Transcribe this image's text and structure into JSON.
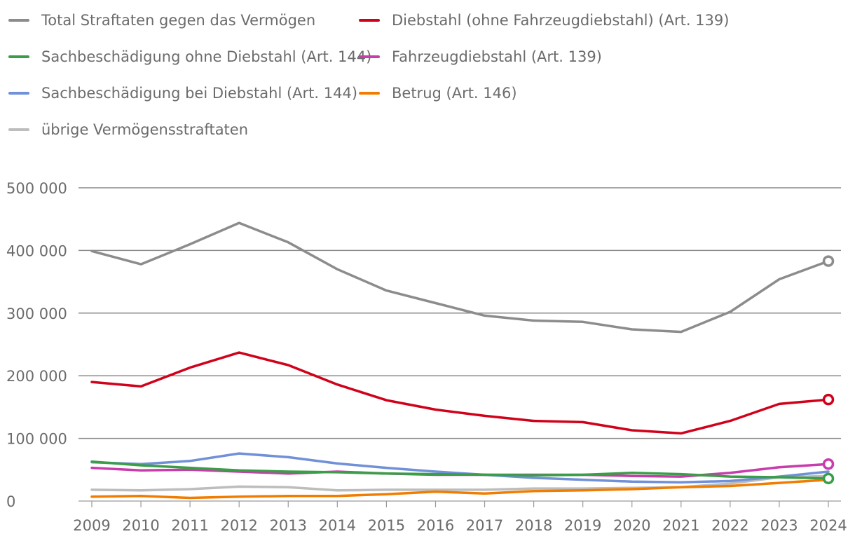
{
  "chart_data": {
    "type": "line",
    "title": "",
    "xlabel": "",
    "ylabel": "",
    "ylim": [
      0,
      500000
    ],
    "yticks": [
      0,
      100000,
      200000,
      300000,
      400000,
      500000
    ],
    "ytick_labels": [
      "0",
      "100 000",
      "200 000",
      "300 000",
      "400 000",
      "500 000"
    ],
    "x": [
      "2009",
      "2010",
      "2011",
      "2012",
      "2013",
      "2014",
      "2015",
      "2016",
      "2017",
      "2018",
      "2019",
      "2020",
      "2021",
      "2022",
      "2023",
      "2024"
    ],
    "legend_placement": "top-left",
    "grid": true,
    "series": [
      {
        "name": "Total Straftaten gegen das Vermögen",
        "color": "#8c8c8c",
        "end_marker": true,
        "values": [
          399000,
          378000,
          410000,
          444000,
          413000,
          370000,
          336000,
          316000,
          296000,
          288000,
          286000,
          274000,
          270000,
          302000,
          354000,
          383000
        ]
      },
      {
        "name": "Diebstahl (ohne Fahrzeugdiebstahl) (Art. 139)",
        "color": "#d0021b",
        "end_marker": true,
        "values": [
          190000,
          183000,
          213000,
          237000,
          217000,
          186000,
          161000,
          146000,
          136000,
          128000,
          126000,
          113000,
          108000,
          128000,
          155000,
          162000
        ]
      },
      {
        "name": "Sachbeschädigung ohne Diebstahl (Art. 144)",
        "color": "#3a9e48",
        "end_marker": true,
        "values": [
          63000,
          57000,
          53000,
          49000,
          47000,
          46000,
          44000,
          43000,
          42000,
          41000,
          42000,
          45000,
          43000,
          39000,
          38000,
          36000
        ]
      },
      {
        "name": "Fahrzeugdiebstahl (Art. 139)",
        "color": "#c93cac",
        "end_marker": true,
        "values": [
          53000,
          49000,
          50000,
          47000,
          44000,
          47000,
          44000,
          42000,
          42000,
          42000,
          42000,
          40000,
          39000,
          45000,
          54000,
          59000
        ]
      },
      {
        "name": "Sachbeschädigung bei Diebstahl (Art. 144)",
        "color": "#7090d8",
        "end_marker": false,
        "values": [
          62000,
          59000,
          64000,
          76000,
          70000,
          60000,
          53000,
          47000,
          42000,
          37000,
          34000,
          31000,
          30000,
          32000,
          39000,
          47000
        ]
      },
      {
        "name": "Betrug (Art. 146)",
        "color": "#f07d00",
        "end_marker": false,
        "values": [
          7000,
          8000,
          5000,
          7000,
          8000,
          8000,
          11000,
          15000,
          12000,
          16000,
          17000,
          19000,
          22000,
          24000,
          29000,
          34000
        ]
      },
      {
        "name": "übrige Vermögensstraftaten",
        "color": "#bdbdbd",
        "end_marker": false,
        "values": [
          18000,
          17000,
          19000,
          23000,
          22000,
          17000,
          18000,
          18000,
          18000,
          20000,
          20000,
          21000,
          22000,
          28000,
          38000,
          40000
        ]
      }
    ]
  }
}
